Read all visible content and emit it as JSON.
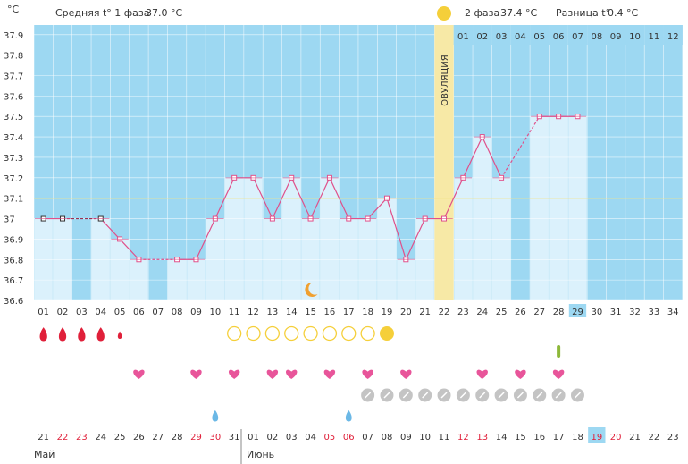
{
  "header": {
    "unit": "°C",
    "phase1": "Средняя t° 1 фаза",
    "phase1_value": "37.0 °C",
    "phase2": "2 фаза",
    "phase2_value": "37.4 °C",
    "diff": "Разница t°",
    "diff_value": "0.4 °C",
    "ovulation": "ОВУЛЯЦИЯ",
    "phase2_days": [
      "01",
      "02",
      "03",
      "04",
      "05",
      "06",
      "07",
      "08",
      "09",
      "10",
      "11",
      "12"
    ]
  },
  "chart_data": {
    "type": "line",
    "y_ticks": [
      "36.6",
      "36.7",
      "36.8",
      "36.9",
      "37",
      "37.1",
      "37.2",
      "37.3",
      "37.4",
      "37.5",
      "37.6",
      "37.7",
      "37.8",
      "37.9"
    ],
    "ylim": [
      36.6,
      37.9
    ],
    "coverline": 37.1,
    "ovulation_day": 22,
    "highlight_day": 29,
    "cycle_days": [
      "01",
      "02",
      "03",
      "04",
      "05",
      "06",
      "07",
      "08",
      "09",
      "10",
      "11",
      "12",
      "13",
      "14",
      "15",
      "16",
      "17",
      "18",
      "19",
      "20",
      "21",
      "22",
      "23",
      "24",
      "25",
      "26",
      "27",
      "28",
      "29",
      "30",
      "31",
      "32",
      "33",
      "34"
    ],
    "series": [
      {
        "values": [
          37.0,
          37.0,
          null,
          37.0,
          36.9,
          36.8,
          null,
          36.8,
          36.8,
          37.0,
          37.2,
          37.2,
          37.0,
          37.2,
          37.0,
          37.2,
          37.0,
          37.0,
          37.1,
          36.8,
          37.0,
          37.0,
          37.2,
          37.4,
          37.2,
          null,
          37.5,
          37.5,
          37.5,
          null,
          null,
          null,
          null,
          null
        ]
      }
    ]
  },
  "markers": {
    "drops": [
      1,
      2,
      3,
      4,
      5
    ],
    "circles_open": [
      11,
      12,
      13,
      14,
      15,
      16,
      17,
      18
    ],
    "circle_filled": [
      19
    ],
    "moon_day": 15,
    "test_day": 28,
    "hearts": [
      6,
      9,
      11,
      13,
      14,
      16,
      18,
      20,
      24,
      26,
      28
    ],
    "grey_circles": [
      18,
      19,
      20,
      21,
      22,
      23,
      24,
      25,
      26,
      27,
      28,
      29
    ],
    "blue_drops": [
      10,
      17
    ]
  },
  "calendar": {
    "dates": [
      "21",
      "22",
      "23",
      "24",
      "25",
      "26",
      "27",
      "28",
      "29",
      "30",
      "31",
      "01",
      "02",
      "03",
      "04",
      "05",
      "06",
      "07",
      "08",
      "09",
      "10",
      "11",
      "12",
      "13",
      "14",
      "15",
      "16",
      "17",
      "18",
      "19",
      "20",
      "21",
      "22",
      "23"
    ],
    "weekend_red": [
      1,
      2,
      8,
      9,
      15,
      16,
      22,
      23,
      29,
      30
    ],
    "highlight_index": 29,
    "months": [
      {
        "label": "Май"
      },
      {
        "label": "Июнь"
      }
    ]
  },
  "colors": {
    "background": "#9dd8f2",
    "bar": "#dbf1fc",
    "line": "#e0508a",
    "ovulation": "#f7e9a6",
    "coverline": "#f2e38c",
    "weekend": "#e0203a",
    "heart": "#e8559a",
    "drop": "#e0203a",
    "sun": "#f5cf3a"
  }
}
